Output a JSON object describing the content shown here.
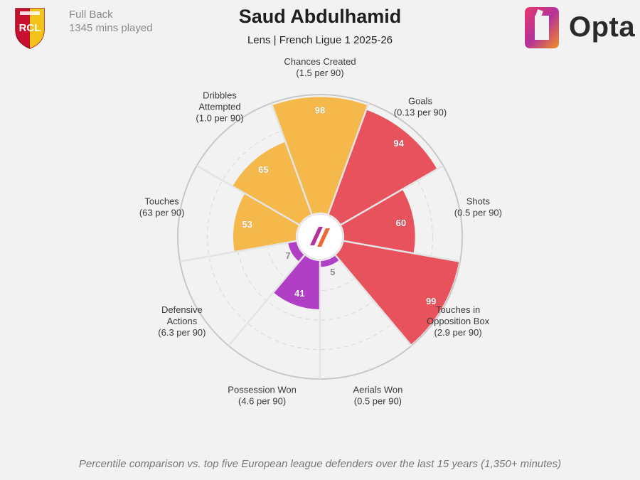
{
  "header": {
    "position": "Full Back",
    "minutes": "1345 mins played",
    "title": "Saud Abdulhamid",
    "subtitle": "Lens | French Ligue 1 2025-26",
    "brand": "Opta",
    "crest_text": "RCL"
  },
  "footnote": "Percentile comparison vs. top five European league defenders over the last 15 years (1,350+ minutes)",
  "chart_data": {
    "type": "polar-bar",
    "scale_max": 100,
    "categories": [
      {
        "label": [
          "Chances Created",
          "(1.5 per 90)"
        ],
        "value": 98,
        "color": "#f5b84a"
      },
      {
        "label": [
          "Goals",
          "(0.13 per 90)"
        ],
        "value": 94,
        "color": "#e8525d"
      },
      {
        "label": [
          "Shots",
          "(0.5 per 90)"
        ],
        "value": 60,
        "color": "#e8525d"
      },
      {
        "label": [
          "Touches in",
          "Opposition Box",
          "(2.9 per 90)"
        ],
        "value": 99,
        "color": "#e8525d"
      },
      {
        "label": [
          "Aerials Won",
          "(0.5 per 90)"
        ],
        "value": 5,
        "color": "#b03fc6"
      },
      {
        "label": [
          "Possession Won",
          "(4.6 per 90)"
        ],
        "value": 41,
        "color": "#b03fc6"
      },
      {
        "label": [
          "Defensive",
          "Actions",
          "(6.3 per 90)"
        ],
        "value": 7,
        "color": "#b03fc6"
      },
      {
        "label": [
          "Touches",
          "(63 per 90)"
        ],
        "value": 53,
        "color": "#f5b84a"
      },
      {
        "label": [
          "Dribbles",
          "Attempted",
          "(1.0 per 90)"
        ],
        "value": 65,
        "color": "#f5b84a"
      }
    ]
  }
}
